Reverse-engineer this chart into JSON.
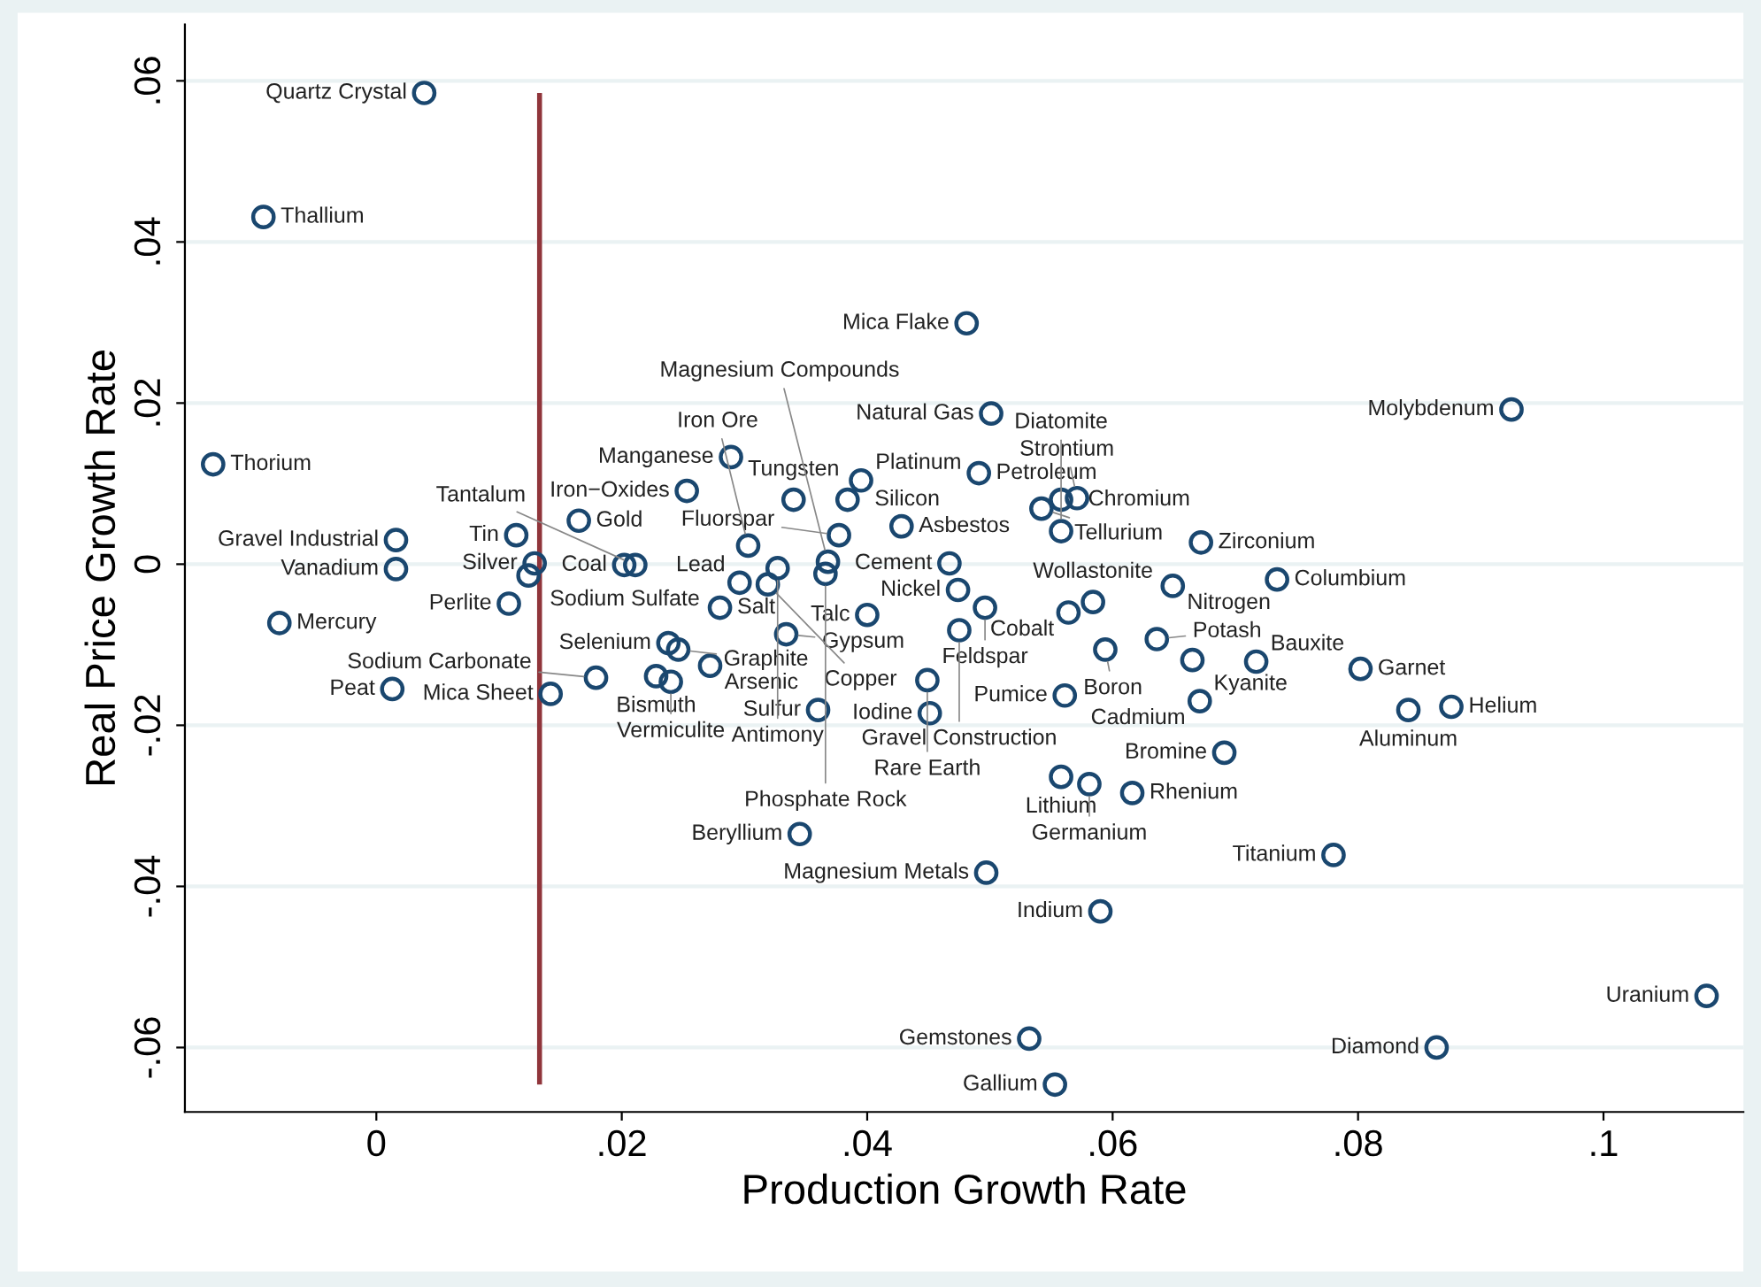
{
  "chart_data": {
    "type": "scatter",
    "xlabel": "Production Growth Rate",
    "ylabel": "Real Price Growth Rate",
    "xlim": [
      -0.0156,
      0.1114
    ],
    "ylim": [
      -0.068,
      0.067
    ],
    "xticks": [
      {
        "value": 0,
        "label": "0"
      },
      {
        "value": 0.02,
        "label": ".02"
      },
      {
        "value": 0.04,
        "label": ".04"
      },
      {
        "value": 0.06,
        "label": ".06"
      },
      {
        "value": 0.08,
        "label": ".08"
      },
      {
        "value": 0.1,
        "label": ".1"
      }
    ],
    "yticks": [
      {
        "value": -0.06,
        "label": "-.06"
      },
      {
        "value": -0.04,
        "label": "-.04"
      },
      {
        "value": -0.02,
        "label": "-.02"
      },
      {
        "value": 0,
        "label": "0"
      },
      {
        "value": 0.02,
        "label": ".02"
      },
      {
        "value": 0.04,
        "label": ".04"
      },
      {
        "value": 0.06,
        "label": ".06"
      }
    ],
    "grid": "y",
    "legend": false,
    "marker": "circle",
    "ref_lines": [
      {
        "axis": "x",
        "value": 0.0133,
        "color": "#90353b"
      }
    ],
    "series": [
      {
        "color": "#1a476f",
        "x": [
          0.0039,
          -0.0092,
          0.0481,
          0.0501,
          0.0925,
          -0.0133,
          0.0016,
          0.0016,
          0.0114,
          0.0129,
          0.0124,
          0.0108,
          0.0165,
          -0.0079,
          0.0013,
          0.0142,
          0.0179,
          0.0228,
          0.024,
          0.0238,
          0.0246,
          0.0272,
          0.0289,
          0.0253,
          0.034,
          0.0395,
          0.0384,
          0.0491,
          0.0428,
          0.0377,
          0.0467,
          0.0474,
          0.0496,
          0.0584,
          0.0564,
          0.0475,
          0.04,
          0.0558,
          0.0571,
          0.0542,
          0.0558,
          0.0672,
          0.0734,
          0.0649,
          0.0636,
          0.0594,
          0.0665,
          0.0717,
          0.0802,
          0.0841,
          0.0876,
          0.0561,
          0.0671,
          0.0451,
          0.0449,
          0.036,
          0.0334,
          0.028,
          0.0303,
          0.0202,
          0.0211,
          0.0296,
          0.0319,
          0.0327,
          0.0368,
          0.0366,
          0.0345,
          0.0497,
          0.059,
          0.0558,
          0.0581,
          0.0616,
          0.0691,
          0.078,
          0.1084,
          0.0864,
          0.0532,
          0.0553
        ],
        "values": [
          0.0585,
          0.0431,
          0.0299,
          0.0187,
          0.0192,
          0.0124,
          0.003,
          -0.0006,
          0.0036,
          0.0001,
          -0.0014,
          -0.0049,
          0.0054,
          -0.0073,
          -0.0155,
          -0.0161,
          -0.0141,
          -0.0139,
          -0.0146,
          -0.0098,
          -0.0106,
          -0.0126,
          0.0133,
          0.0091,
          0.008,
          0.0104,
          0.008,
          0.0113,
          0.0047,
          0.0036,
          0.0001,
          -0.0032,
          -0.0054,
          -0.0047,
          -0.006,
          -0.0082,
          -0.0063,
          0.008,
          0.0082,
          0.0069,
          0.0041,
          0.0027,
          -0.0019,
          -0.0027,
          -0.0093,
          -0.0106,
          -0.0119,
          -0.0121,
          -0.013,
          -0.0181,
          -0.0177,
          -0.0163,
          -0.017,
          -0.0185,
          -0.0144,
          -0.0181,
          -0.0087,
          -0.0054,
          0.0023,
          -0.0001,
          -0.0001,
          -0.0023,
          -0.0025,
          -0.0005,
          0.0003,
          -0.0012,
          -0.0335,
          -0.0383,
          -0.0431,
          -0.0264,
          -0.0273,
          -0.0284,
          -0.0234,
          -0.0361,
          -0.0536,
          -0.06,
          -0.0589,
          -0.0646
        ]
      }
    ],
    "annotations": [
      {
        "text": "Quartz Crystal",
        "x": 0.0039,
        "y": 0.0585
      },
      {
        "text": "Thallium",
        "x": -0.0092,
        "y": 0.0431
      },
      {
        "text": "Mica Flake",
        "x": 0.0481,
        "y": 0.0299
      },
      {
        "text": "Natural Gas",
        "x": 0.0501,
        "y": 0.0187
      },
      {
        "text": "Molybdenum",
        "x": 0.0925,
        "y": 0.0192
      },
      {
        "text": "Thorium",
        "x": -0.0133,
        "y": 0.0124
      },
      {
        "text": "Gravel Industrial",
        "x": 0.0016,
        "y": 0.003
      },
      {
        "text": "Vanadium",
        "x": 0.0016,
        "y": -0.0006
      },
      {
        "text": "Tin",
        "x": 0.0114,
        "y": 0.0036
      },
      {
        "text": "Silver",
        "x": 0.0129,
        "y": 0.0001
      },
      {
        "text": "Sodium Sulfate",
        "x": 0.0124,
        "y": -0.0014
      },
      {
        "text": "Perlite",
        "x": 0.0108,
        "y": -0.0049
      },
      {
        "text": "Gold",
        "x": 0.0165,
        "y": 0.0054
      },
      {
        "text": "Mercury",
        "x": -0.0079,
        "y": -0.0073
      },
      {
        "text": "Peat",
        "x": 0.0013,
        "y": -0.0155
      },
      {
        "text": "Mica Sheet",
        "x": 0.0142,
        "y": -0.0161
      },
      {
        "text": "Sodium Carbonate",
        "x": 0.0179,
        "y": -0.0141
      },
      {
        "text": "Bismuth",
        "x": 0.0228,
        "y": -0.0139
      },
      {
        "text": "Vermiculite",
        "x": 0.024,
        "y": -0.0146
      },
      {
        "text": "Selenium",
        "x": 0.0238,
        "y": -0.0098
      },
      {
        "text": "Graphite",
        "x": 0.0246,
        "y": -0.0106
      },
      {
        "text": "Arsenic",
        "x": 0.0272,
        "y": -0.0126
      },
      {
        "text": "Manganese",
        "x": 0.0289,
        "y": 0.0133
      },
      {
        "text": "Iron−Oxides",
        "x": 0.0253,
        "y": 0.0091
      },
      {
        "text": "Tungsten",
        "x": 0.034,
        "y": 0.008
      },
      {
        "text": "Platinum",
        "x": 0.0395,
        "y": 0.0104
      },
      {
        "text": "Silicon",
        "x": 0.0384,
        "y": 0.008
      },
      {
        "text": "Petroleum",
        "x": 0.0491,
        "y": 0.0113
      },
      {
        "text": "Asbestos",
        "x": 0.0428,
        "y": 0.0047
      },
      {
        "text": "Fluorspar",
        "x": 0.0377,
        "y": 0.0036
      },
      {
        "text": "Cement",
        "x": 0.0467,
        "y": 0.0001
      },
      {
        "text": "Nickel",
        "x": 0.0474,
        "y": -0.0032
      },
      {
        "text": "Feldspar",
        "x": 0.0496,
        "y": -0.0054
      },
      {
        "text": "Wollastonite",
        "x": 0.0584,
        "y": -0.0047
      },
      {
        "text": "Cobalt",
        "x": 0.0564,
        "y": -0.006
      },
      {
        "text": "Gravel Construction",
        "x": 0.0475,
        "y": -0.0082
      },
      {
        "text": "Talc",
        "x": 0.04,
        "y": -0.0063
      },
      {
        "text": "Chromium",
        "x": 0.0558,
        "y": 0.008
      },
      {
        "text": "Strontium",
        "x": 0.0571,
        "y": 0.0082
      },
      {
        "text": "Tellurium",
        "x": 0.0542,
        "y": 0.0069
      },
      {
        "text": "Diatomite",
        "x": 0.0558,
        "y": 0.0041
      },
      {
        "text": "Zirconium",
        "x": 0.0672,
        "y": 0.0027
      },
      {
        "text": "Columbium",
        "x": 0.0734,
        "y": -0.0019
      },
      {
        "text": "Nitrogen",
        "x": 0.0649,
        "y": -0.0027
      },
      {
        "text": "Potash",
        "x": 0.0636,
        "y": -0.0093
      },
      {
        "text": "Boron",
        "x": 0.0594,
        "y": -0.0106
      },
      {
        "text": "Kyanite",
        "x": 0.0665,
        "y": -0.0119
      },
      {
        "text": "Bauxite",
        "x": 0.0717,
        "y": -0.0121
      },
      {
        "text": "Garnet",
        "x": 0.0802,
        "y": -0.013
      },
      {
        "text": "Aluminum",
        "x": 0.0841,
        "y": -0.0181
      },
      {
        "text": "Helium",
        "x": 0.0876,
        "y": -0.0177
      },
      {
        "text": "Pumice",
        "x": 0.0561,
        "y": -0.0163
      },
      {
        "text": "Cadmium",
        "x": 0.0671,
        "y": -0.017
      },
      {
        "text": "Iodine",
        "x": 0.0451,
        "y": -0.0185
      },
      {
        "text": "Rare Earth",
        "x": 0.0449,
        "y": -0.0144
      },
      {
        "text": "Sulfur",
        "x": 0.036,
        "y": -0.0181
      },
      {
        "text": "Gypsum",
        "x": 0.0334,
        "y": -0.0087
      },
      {
        "text": "Salt",
        "x": 0.028,
        "y": -0.0054
      },
      {
        "text": "Iron Ore",
        "x": 0.0303,
        "y": 0.0023
      },
      {
        "text": "Coal",
        "x": 0.0202,
        "y": -0.0001
      },
      {
        "text": "Tantalum",
        "x": 0.0211,
        "y": -0.0001
      },
      {
        "text": "Lead",
        "x": 0.0296,
        "y": -0.0023
      },
      {
        "text": "Copper",
        "x": 0.0319,
        "y": -0.0025
      },
      {
        "text": "Antimony",
        "x": 0.0327,
        "y": -0.0005
      },
      {
        "text": "Magnesium Compounds",
        "x": 0.0368,
        "y": 0.0003
      },
      {
        "text": "Phosphate Rock",
        "x": 0.0366,
        "y": -0.0012
      },
      {
        "text": "Beryllium",
        "x": 0.0345,
        "y": -0.0335
      },
      {
        "text": "Magnesium Metals",
        "x": 0.0497,
        "y": -0.0383
      },
      {
        "text": "Indium",
        "x": 0.059,
        "y": -0.0431
      },
      {
        "text": "Lithium",
        "x": 0.0558,
        "y": -0.0264
      },
      {
        "text": "Germanium",
        "x": 0.0581,
        "y": -0.0273
      },
      {
        "text": "Rhenium",
        "x": 0.0616,
        "y": -0.0284
      },
      {
        "text": "Bromine",
        "x": 0.0691,
        "y": -0.0234
      },
      {
        "text": "Titanium",
        "x": 0.078,
        "y": -0.0361
      },
      {
        "text": "Uranium",
        "x": 0.1084,
        "y": -0.0536
      },
      {
        "text": "Diamond",
        "x": 0.0864,
        "y": -0.06
      },
      {
        "text": "Gemstones",
        "x": 0.0532,
        "y": -0.0589
      },
      {
        "text": "Gallium",
        "x": 0.0553,
        "y": -0.0646
      }
    ]
  }
}
